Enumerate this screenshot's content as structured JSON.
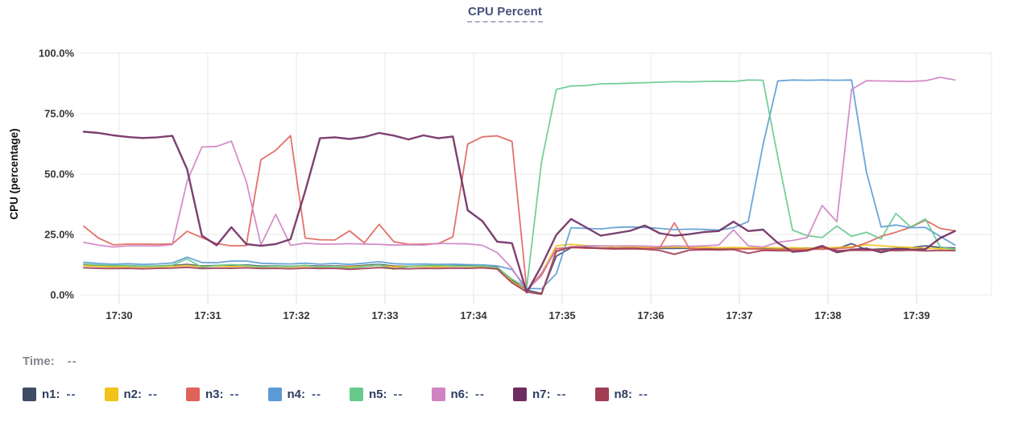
{
  "title": "CPU Percent",
  "time_row": {
    "label": "Time:",
    "value": "--"
  },
  "legend": {
    "items": [
      {
        "label": "n1:",
        "value": "--"
      },
      {
        "label": "n2:",
        "value": "--"
      },
      {
        "label": "n3:",
        "value": "--"
      },
      {
        "label": "n4:",
        "value": "--"
      },
      {
        "label": "n5:",
        "value": "--"
      },
      {
        "label": "n6:",
        "value": "--"
      },
      {
        "label": "n7:",
        "value": "--"
      },
      {
        "label": "n8:",
        "value": "--"
      }
    ]
  },
  "chart_data": {
    "type": "line",
    "title": "CPU Percent",
    "xlabel": "",
    "ylabel": "CPU (percentage)",
    "ylim": [
      0,
      100
    ],
    "grid": true,
    "legend_position": "bottom",
    "x_axis": {
      "unit": "minutes after 17:00; samples every ~10s",
      "start": 29.6,
      "step": 0.1666667,
      "ticks": [
        {
          "value": 30,
          "label": "17:30"
        },
        {
          "value": 31,
          "label": "17:31"
        },
        {
          "value": 32,
          "label": "17:32"
        },
        {
          "value": 33,
          "label": "17:33"
        },
        {
          "value": 34,
          "label": "17:34"
        },
        {
          "value": 35,
          "label": "17:35"
        },
        {
          "value": 36,
          "label": "17:36"
        },
        {
          "value": 37,
          "label": "17:37"
        },
        {
          "value": 38,
          "label": "17:38"
        },
        {
          "value": 39,
          "label": "17:39"
        }
      ]
    },
    "y_axis": {
      "label": "CPU (percentage)",
      "ticks": [
        {
          "value": 100,
          "label": "100.0%"
        },
        {
          "value": 75,
          "label": "75.0%"
        },
        {
          "value": 50,
          "label": "50.0%"
        },
        {
          "value": 25,
          "label": "25.0%"
        },
        {
          "value": 0,
          "label": "0.0%"
        }
      ]
    },
    "series": [
      {
        "name": "n1",
        "color": "#3f4c66",
        "values": [
          12.3,
          12.0,
          11.9,
          12.0,
          11.8,
          11.9,
          12.1,
          12.6,
          11.9,
          12.2,
          12.1,
          12.4,
          11.9,
          12.0,
          11.8,
          12.1,
          11.9,
          12.0,
          11.8,
          12.2,
          12.6,
          11.9,
          11.8,
          12.0,
          11.9,
          12.1,
          12.3,
          11.9,
          11.5,
          6.0,
          2.0,
          0.6,
          16.0,
          19.5,
          19.7,
          19.4,
          19.3,
          19.4,
          19.3,
          19.2,
          19.2,
          19.3,
          19.1,
          19.2,
          19.4,
          19.2,
          19.3,
          19.1,
          19.2,
          19.4,
          18.9,
          19.1,
          21.2,
          18.7,
          19.0,
          19.2,
          19.5,
          20.3,
          19.6,
          19.4
        ]
      },
      {
        "name": "n2",
        "color": "#f2c318",
        "values": [
          12.1,
          11.8,
          11.6,
          11.7,
          11.5,
          11.7,
          11.8,
          12.2,
          11.6,
          12.0,
          11.7,
          12.0,
          11.5,
          11.8,
          11.5,
          11.9,
          11.6,
          11.8,
          11.5,
          11.9,
          12.2,
          11.6,
          11.7,
          11.8,
          11.6,
          11.9,
          11.7,
          11.8,
          11.3,
          5.5,
          1.8,
          9.0,
          20.3,
          20.9,
          20.4,
          20.2,
          19.9,
          20.0,
          19.8,
          19.7,
          19.8,
          19.6,
          19.7,
          19.5,
          19.6,
          19.5,
          19.6,
          19.4,
          19.5,
          19.3,
          19.4,
          19.6,
          19.9,
          20.7,
          20.3,
          19.9,
          19.6,
          19.3,
          19.1,
          19.0
        ]
      },
      {
        "name": "n3",
        "color": "#e0635a",
        "values": [
          28.4,
          23.5,
          20.7,
          21.0,
          21.0,
          20.9,
          21.1,
          26.3,
          23.7,
          21.2,
          20.3,
          20.4,
          55.9,
          59.8,
          65.9,
          23.5,
          22.8,
          22.7,
          26.5,
          21.5,
          29.2,
          22.0,
          20.9,
          21.0,
          21.2,
          24.0,
          62.4,
          65.4,
          65.8,
          63.5,
          2.0,
          8.0,
          19.2,
          19.6,
          19.3,
          19.4,
          19.2,
          19.3,
          19.2,
          19.4,
          29.8,
          19.3,
          18.9,
          18.8,
          18.9,
          19.0,
          18.8,
          18.7,
          18.9,
          18.8,
          18.9,
          19.2,
          19.5,
          21.5,
          24.2,
          25.9,
          28.0,
          30.9,
          27.5,
          26.5
        ]
      },
      {
        "name": "n4",
        "color": "#5b9bd5",
        "values": [
          13.5,
          13.0,
          12.7,
          12.9,
          12.6,
          12.8,
          13.2,
          15.6,
          13.4,
          13.3,
          14.0,
          14.0,
          13.1,
          12.9,
          12.8,
          13.1,
          12.7,
          13.0,
          12.6,
          13.1,
          13.7,
          12.9,
          12.7,
          12.8,
          12.6,
          12.7,
          12.5,
          12.4,
          12.0,
          10.5,
          2.7,
          2.5,
          8.7,
          27.8,
          27.5,
          27.3,
          27.9,
          28.1,
          27.9,
          27.5,
          27.0,
          27.2,
          27.1,
          26.8,
          27.8,
          30.3,
          62.0,
          88.5,
          88.9,
          88.8,
          88.9,
          88.8,
          88.9,
          50.9,
          28.1,
          28.9,
          27.8,
          27.9,
          24.2,
          20.6
        ]
      },
      {
        "name": "n5",
        "color": "#68c98c",
        "values": [
          12.8,
          12.4,
          12.2,
          12.1,
          11.9,
          12.0,
          12.3,
          14.9,
          11.4,
          12.2,
          12.5,
          12.2,
          11.6,
          11.9,
          11.7,
          12.2,
          11.4,
          11.8,
          10.9,
          11.7,
          12.4,
          10.6,
          11.8,
          12.1,
          12.2,
          12.0,
          11.9,
          12.0,
          11.2,
          6.5,
          3.2,
          55.0,
          85.0,
          86.4,
          86.6,
          87.3,
          87.4,
          87.6,
          87.8,
          88.0,
          88.2,
          88.1,
          88.3,
          88.4,
          88.3,
          88.9,
          88.8,
          57.0,
          26.8,
          24.5,
          23.7,
          28.5,
          24.2,
          25.9,
          23.1,
          33.7,
          28.1,
          31.4,
          19.8,
          18.9
        ]
      },
      {
        "name": "n6",
        "color": "#cf83c3",
        "values": [
          21.7,
          20.6,
          19.8,
          20.3,
          20.3,
          20.2,
          20.8,
          47.0,
          61.2,
          61.4,
          63.6,
          47.0,
          20.7,
          33.3,
          20.5,
          21.4,
          21.0,
          21.0,
          21.2,
          21.0,
          20.9,
          20.6,
          20.7,
          20.6,
          21.3,
          21.2,
          21.1,
          20.5,
          17.5,
          11.0,
          1.5,
          9.0,
          18.3,
          19.8,
          20.3,
          20.3,
          20.2,
          20.3,
          20.2,
          20.0,
          20.3,
          20.1,
          20.3,
          20.6,
          26.9,
          20.3,
          19.8,
          21.8,
          22.5,
          23.7,
          37.0,
          30.3,
          85.0,
          88.6,
          88.5,
          88.4,
          88.3,
          88.6,
          90.0,
          88.9
        ]
      },
      {
        "name": "n7",
        "color": "#6e2c62",
        "values": [
          67.5,
          67.0,
          66.0,
          65.3,
          64.9,
          65.2,
          65.8,
          52.0,
          24.5,
          20.5,
          28.0,
          21.0,
          20.3,
          21.0,
          23.0,
          43.0,
          64.8,
          65.2,
          64.5,
          65.3,
          67.0,
          65.9,
          64.3,
          66.0,
          64.8,
          65.5,
          35.0,
          30.5,
          22.0,
          21.4,
          1.0,
          12.0,
          24.8,
          31.4,
          28.0,
          24.5,
          25.5,
          26.5,
          28.7,
          25.5,
          24.5,
          25.1,
          26.0,
          26.4,
          30.3,
          26.4,
          27.0,
          21.5,
          17.8,
          18.3,
          20.3,
          17.6,
          18.7,
          19.2,
          17.6,
          19.0,
          18.7,
          18.9,
          23.5,
          26.4
        ]
      },
      {
        "name": "n8",
        "color": "#a03e54",
        "values": [
          11.2,
          11.0,
          10.9,
          11.0,
          10.8,
          11.0,
          11.1,
          11.4,
          10.9,
          11.1,
          11.0,
          11.2,
          10.9,
          11.0,
          10.8,
          11.1,
          10.9,
          11.0,
          10.6,
          10.9,
          11.3,
          10.9,
          10.8,
          11.0,
          10.9,
          11.1,
          11.0,
          11.2,
          10.7,
          5.0,
          1.2,
          0.3,
          18.0,
          19.8,
          19.5,
          19.2,
          19.0,
          19.1,
          18.9,
          18.4,
          16.8,
          18.5,
          18.7,
          18.6,
          18.8,
          17.2,
          18.4,
          18.3,
          18.2,
          18.4,
          19.8,
          18.3,
          18.5,
          18.4,
          18.6,
          18.3,
          18.5,
          18.2,
          18.4,
          18.3
        ]
      }
    ]
  }
}
